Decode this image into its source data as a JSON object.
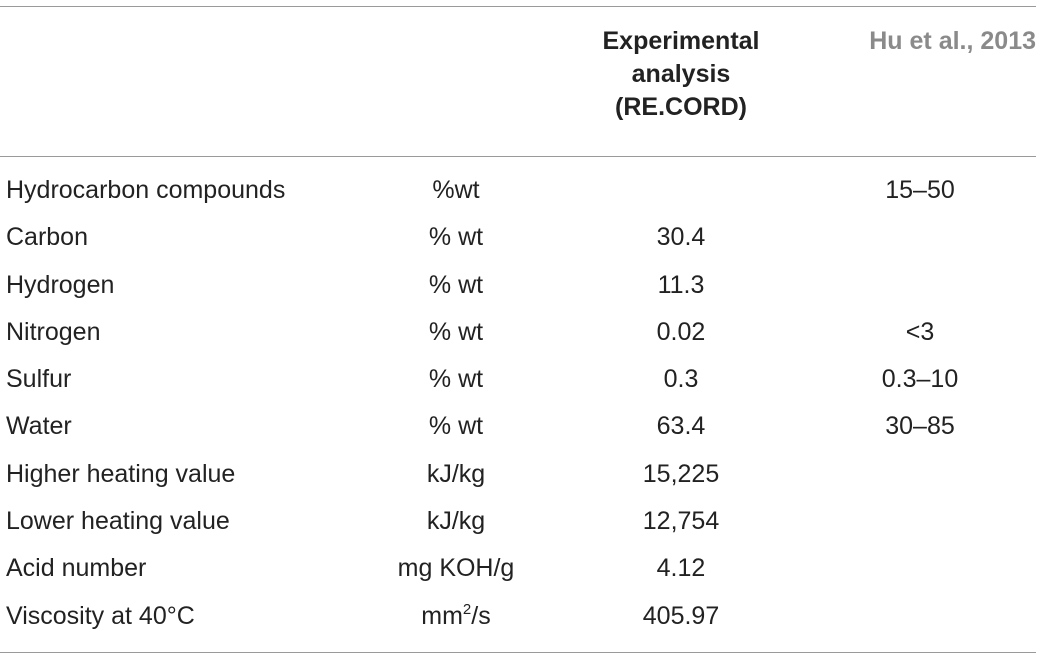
{
  "header": {
    "experimental_label": "Experimental analysis (RE.CORD)",
    "experimental_lines": [
      "Experimental",
      "analysis",
      "(RE.CORD)"
    ],
    "reference_label": "Hu et al., 2013"
  },
  "rows": [
    {
      "property": "Hydrocarbon compounds",
      "unit": "%wt",
      "experimental": "",
      "reference": "15–50"
    },
    {
      "property": "Carbon",
      "unit": "% wt",
      "experimental": "30.4",
      "reference": ""
    },
    {
      "property": "Hydrogen",
      "unit": "% wt",
      "experimental": "11.3",
      "reference": ""
    },
    {
      "property": "Nitrogen",
      "unit": "% wt",
      "experimental": "0.02",
      "reference": "<3"
    },
    {
      "property": "Sulfur",
      "unit": "% wt",
      "experimental": "0.3",
      "reference": "0.3–10"
    },
    {
      "property": "Water",
      "unit": "% wt",
      "experimental": "63.4",
      "reference": "30–85"
    },
    {
      "property": "Higher heating value",
      "unit": "kJ/kg",
      "experimental": "15,225",
      "reference": ""
    },
    {
      "property": "Lower heating value",
      "unit": "kJ/kg",
      "experimental": "12,754",
      "reference": ""
    },
    {
      "property": "Acid number",
      "unit": "mg KOH/g",
      "experimental": "4.12",
      "reference": ""
    },
    {
      "property": "Viscosity at 40°C",
      "unit_base": "mm",
      "unit_sup": "2",
      "unit_tail": "/s",
      "experimental": "405.97",
      "reference": ""
    }
  ]
}
